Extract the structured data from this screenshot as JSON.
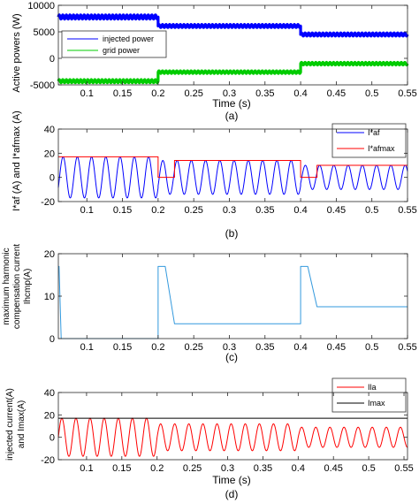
{
  "chart_data": [
    {
      "type": "line",
      "panel_caption": "(a)",
      "xlabel": "Time (s)",
      "ylabel_lines": [
        "Active powers (W)"
      ],
      "xlim": [
        0.06,
        0.55
      ],
      "ylim": [
        -5000,
        10000
      ],
      "xticks": [
        0.1,
        0.15,
        0.2,
        0.25,
        0.3,
        0.35,
        0.4,
        0.45,
        0.5,
        0.55
      ],
      "xtick_labels": [
        "0.1",
        "0.15",
        "0.2",
        "0.25",
        "0.3",
        "0.35",
        "0.4",
        "0.45",
        "0.5",
        "0.55"
      ],
      "yticks": [
        -5000,
        0,
        5000,
        10000
      ],
      "ytick_labels": [
        "-5000",
        "0",
        "5000",
        "10000"
      ],
      "grid": false,
      "legend_position": "middle-left",
      "series": [
        {
          "name": "injected power",
          "color": "#0000ff",
          "kind": "ripple-steps",
          "ripple_period": 0.005,
          "segments": [
            {
              "x": [
                0.06,
                0.2
              ],
              "mean": 7800,
              "amp": 400
            },
            {
              "x": [
                0.2,
                0.4
              ],
              "mean": 6100,
              "amp": 300
            },
            {
              "x": [
                0.4,
                0.55
              ],
              "mean": 4500,
              "amp": 300
            }
          ]
        },
        {
          "name": "grid power",
          "color": "#00cc00",
          "kind": "ripple-steps",
          "ripple_period": 0.005,
          "segments": [
            {
              "x": [
                0.06,
                0.2
              ],
              "mean": -4300,
              "amp": 300
            },
            {
              "x": [
                0.2,
                0.4
              ],
              "mean": -2600,
              "amp": 250
            },
            {
              "x": [
                0.4,
                0.55
              ],
              "mean": -1000,
              "amp": 250
            }
          ]
        }
      ]
    },
    {
      "type": "line",
      "panel_caption": "(b)",
      "xlabel": "",
      "ylabel_lines": [
        "I*af (A) and I*afmax (A)"
      ],
      "xlim": [
        0.06,
        0.55
      ],
      "ylim": [
        -20,
        40
      ],
      "xticks": [
        0.1,
        0.15,
        0.2,
        0.25,
        0.3,
        0.35,
        0.4,
        0.45,
        0.5,
        0.55
      ],
      "xtick_labels": [
        "0.1",
        "0.15",
        "0.2",
        "0.25",
        "0.3",
        "0.35",
        "0.4",
        "0.45",
        "0.5",
        "0.55"
      ],
      "yticks": [
        -20,
        0,
        20,
        40
      ],
      "ytick_labels": [
        "-20",
        "0",
        "20",
        "40"
      ],
      "grid": false,
      "legend_position": "top-right",
      "series": [
        {
          "name": "I*af",
          "color": "#0000ff",
          "kind": "sine",
          "frequency_hz": 50,
          "phase_deg": -30,
          "segments": [
            {
              "x": [
                0.06,
                0.2
              ],
              "amp": 17
            },
            {
              "x": [
                0.2,
                0.4
              ],
              "amp": 14
            },
            {
              "x": [
                0.4,
                0.55
              ],
              "amp": 10
            }
          ]
        },
        {
          "name": "I*afmax",
          "color": "#ff0000",
          "kind": "steps",
          "points": [
            [
              0.06,
              17
            ],
            [
              0.2,
              17
            ],
            [
              0.2,
              0
            ],
            [
              0.223,
              0
            ],
            [
              0.223,
              14
            ],
            [
              0.4,
              14
            ],
            [
              0.4,
              0
            ],
            [
              0.423,
              0
            ],
            [
              0.423,
              10
            ],
            [
              0.55,
              10
            ]
          ]
        }
      ]
    },
    {
      "type": "line",
      "panel_caption": "(c)",
      "xlabel": "",
      "ylabel_lines": [
        "maximum harmonic",
        "compensation current",
        "Ihcmp(A)"
      ],
      "xlim": [
        0.06,
        0.55
      ],
      "ylim": [
        0,
        20
      ],
      "xticks": [
        0.1,
        0.15,
        0.2,
        0.25,
        0.3,
        0.35,
        0.4,
        0.45,
        0.5,
        0.55
      ],
      "xtick_labels": [
        "0.1",
        "0.15",
        "0.2",
        "0.25",
        "0.3",
        "0.35",
        "0.4",
        "0.45",
        "0.5",
        "0.55"
      ],
      "yticks": [
        0,
        10,
        20
      ],
      "ytick_labels": [
        "0",
        "10",
        "20"
      ],
      "grid": false,
      "legend_position": "",
      "series": [
        {
          "name": "",
          "color": "#3399dd",
          "kind": "steps",
          "points": [
            [
              0.06,
              17
            ],
            [
              0.061,
              17
            ],
            [
              0.064,
              0
            ],
            [
              0.2,
              0
            ],
            [
              0.2,
              17
            ],
            [
              0.21,
              17
            ],
            [
              0.223,
              3.5
            ],
            [
              0.4,
              3.5
            ],
            [
              0.4,
              17
            ],
            [
              0.41,
              17
            ],
            [
              0.423,
              7.5
            ],
            [
              0.55,
              7.5
            ]
          ]
        }
      ]
    },
    {
      "type": "line",
      "panel_caption": "(d)",
      "xlabel": "Time (s)",
      "ylabel_lines": [
        "injected current(A)",
        "and Imax(A)"
      ],
      "xlim": [
        0.06,
        0.555
      ],
      "ylim": [
        -20,
        40
      ],
      "xticks": [
        0.1,
        0.15,
        0.2,
        0.25,
        0.3,
        0.35,
        0.4,
        0.45,
        0.5,
        0.55
      ],
      "xtick_labels": [
        "0.1",
        "0.15",
        "0.2",
        "0.25",
        "0.3",
        "0.35",
        "0.4",
        "0.45",
        "0.5",
        "0.55"
      ],
      "yticks": [
        -20,
        0,
        20,
        40
      ],
      "ytick_labels": [
        "-20",
        "0",
        "20",
        "40"
      ],
      "grid": false,
      "legend_position": "top-right",
      "series": [
        {
          "name": "Ila",
          "color": "#ff0000",
          "kind": "sine",
          "frequency_hz": 50,
          "phase_deg": 0,
          "segments": [
            {
              "x": [
                0.06,
                0.2
              ],
              "amp": 17
            },
            {
              "x": [
                0.2,
                0.4
              ],
              "amp": 12
            },
            {
              "x": [
                0.4,
                0.555
              ],
              "amp": 9
            }
          ]
        },
        {
          "name": "Imax",
          "color": "#000000",
          "kind": "steps",
          "points": [
            [
              0.06,
              17
            ],
            [
              0.555,
              17
            ]
          ]
        }
      ]
    }
  ]
}
